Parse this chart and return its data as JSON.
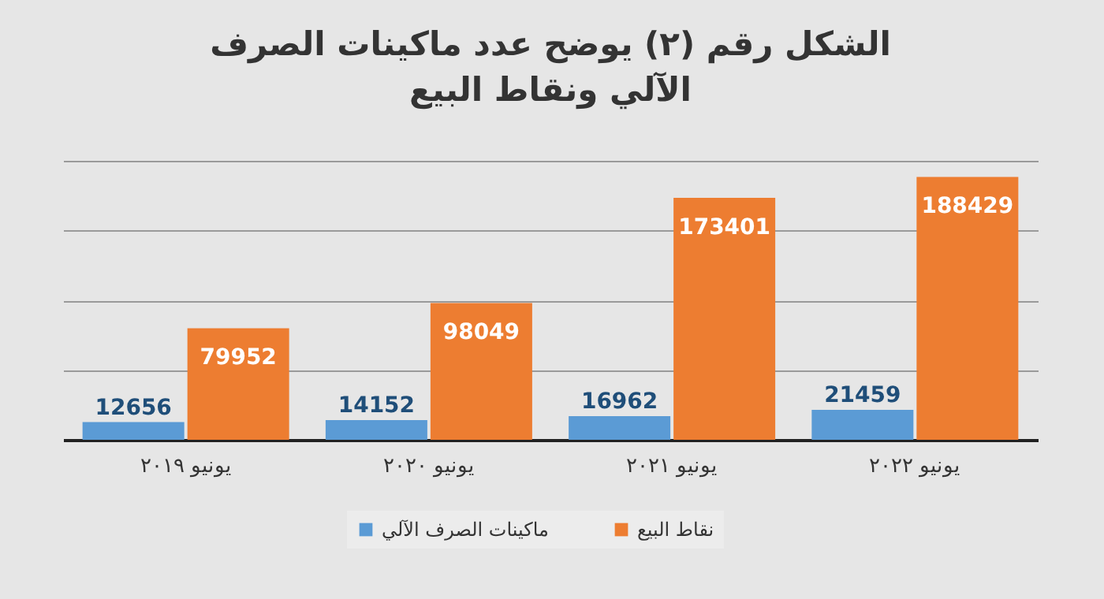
{
  "chart_data": {
    "type": "bar",
    "title": "الشكل رقم (٢) يوضح عدد ماكينات الصرف الآلي ونقاط البيع",
    "categories": [
      "يونيو ٢٠١٩",
      "يونيو ٢٠٢٠",
      "يونيو ٢٠٢١",
      "يونيو ٢٠٢٢"
    ],
    "series": [
      {
        "name": "ماكينات الصرف الآلي",
        "color": "#5b9bd5",
        "values": [
          12656,
          14152,
          16962,
          21459
        ]
      },
      {
        "name": "نقاط البيع",
        "color": "#ed7d31",
        "values": [
          79952,
          98049,
          173401,
          188429
        ]
      }
    ],
    "ylim": [
      0,
      200000
    ],
    "yticks": [
      {
        "value": 0,
        "label": null
      },
      {
        "value": 50000,
        "label": null
      },
      {
        "value": 100000,
        "label": null
      },
      {
        "value": 150000,
        "label": null
      },
      {
        "value": 200000,
        "label": null
      }
    ],
    "tick_labels": "x",
    "grid": "y",
    "legend": "bottom",
    "data_labels": true
  }
}
